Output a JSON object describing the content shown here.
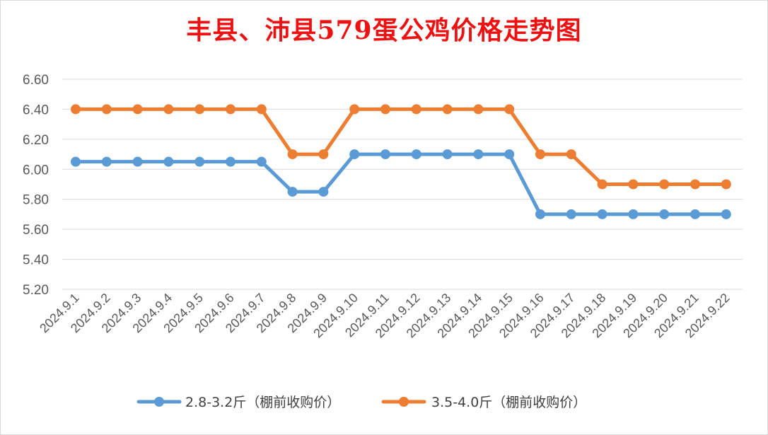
{
  "chart_data": {
    "type": "line",
    "title": "丰县、沛县579蛋公鸡价格走势图",
    "xlabel": "",
    "ylabel": "",
    "categories": [
      "2024.9.1",
      "2024.9.2",
      "2024.9.3",
      "2024.9.4",
      "2024.9.5",
      "2024.9.6",
      "2024.9.7",
      "2024.9.8",
      "2024.9.9",
      "2024.9.10",
      "2024.9.11",
      "2024.9.12",
      "2024.9.13",
      "2024.9.14",
      "2024.9.15",
      "2024.9.16",
      "2024.9.17",
      "2024.9.18",
      "2024.9.19",
      "2024.9.20",
      "2024.9.21",
      "2024.9.22"
    ],
    "ylim": [
      5.2,
      6.6
    ],
    "yticks": [
      "5.20",
      "5.40",
      "5.60",
      "5.80",
      "6.00",
      "6.20",
      "6.40",
      "6.60"
    ],
    "grid": true,
    "legend_position": "bottom",
    "series": [
      {
        "name": "2.8-3.2斤（棚前收购价）",
        "color": "#5b9bd5",
        "values": [
          6.05,
          6.05,
          6.05,
          6.05,
          6.05,
          6.05,
          6.05,
          5.85,
          5.85,
          6.1,
          6.1,
          6.1,
          6.1,
          6.1,
          6.1,
          5.7,
          5.7,
          5.7,
          5.7,
          5.7,
          5.7,
          5.7
        ]
      },
      {
        "name": "3.5-4.0斤（棚前收购价）",
        "color": "#ed7d31",
        "values": [
          6.4,
          6.4,
          6.4,
          6.4,
          6.4,
          6.4,
          6.4,
          6.1,
          6.1,
          6.4,
          6.4,
          6.4,
          6.4,
          6.4,
          6.4,
          6.1,
          6.1,
          5.9,
          5.9,
          5.9,
          5.9,
          5.9
        ]
      }
    ]
  }
}
